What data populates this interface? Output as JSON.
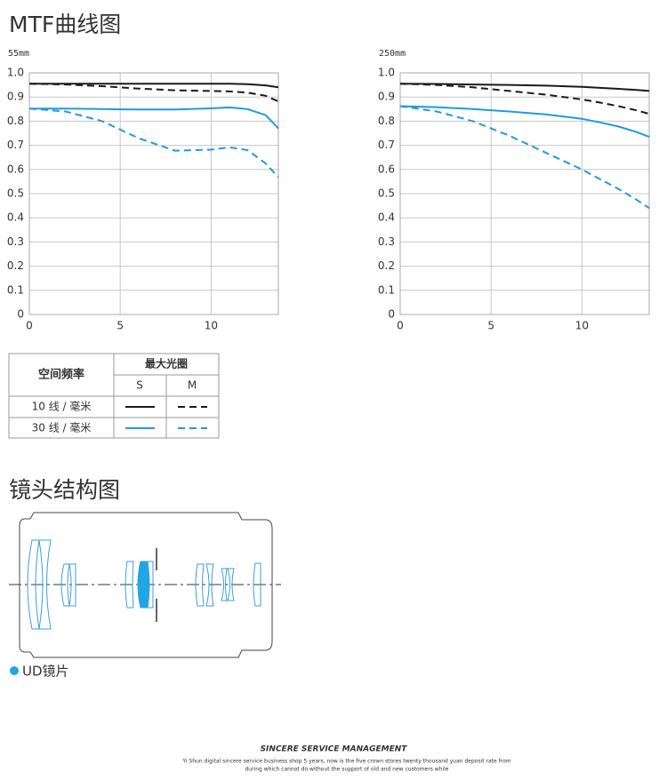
{
  "header": {
    "title": "MTF曲线图"
  },
  "chart_data": [
    {
      "type": "line",
      "subtitle": "55mm",
      "x": [
        0,
        2,
        4,
        6,
        8,
        10,
        11,
        12,
        13,
        13.7
      ],
      "series": [
        {
          "color": "#1a1a1a",
          "dashed": false,
          "values": [
            0.955,
            0.955,
            0.955,
            0.955,
            0.955,
            0.955,
            0.955,
            0.953,
            0.948,
            0.94
          ]
        },
        {
          "color": "#1a1a1a",
          "dashed": true,
          "values": [
            0.955,
            0.952,
            0.945,
            0.935,
            0.928,
            0.925,
            0.923,
            0.918,
            0.905,
            0.882
          ]
        },
        {
          "color": "#1e9be0",
          "dashed": false,
          "values": [
            0.852,
            0.852,
            0.85,
            0.848,
            0.848,
            0.853,
            0.857,
            0.85,
            0.825,
            0.77
          ]
        },
        {
          "color": "#1e9be0",
          "dashed": true,
          "values": [
            0.852,
            0.84,
            0.8,
            0.73,
            0.678,
            0.682,
            0.692,
            0.68,
            0.625,
            0.568
          ]
        }
      ],
      "xlim": [
        0,
        13.7
      ],
      "ylim": [
        0,
        1
      ],
      "xticks": [
        0,
        5,
        10
      ],
      "yticks": [
        0,
        0.1,
        0.2,
        0.3,
        0.4,
        0.5,
        0.6,
        0.7,
        0.8,
        0.9,
        {
          "value": 1,
          "label": "1.0"
        }
      ],
      "grid": true
    },
    {
      "type": "line",
      "subtitle": "250mm",
      "x": [
        0,
        2,
        4,
        6,
        8,
        10,
        11,
        12,
        13,
        13.7
      ],
      "series": [
        {
          "color": "#1a1a1a",
          "dashed": false,
          "values": [
            0.955,
            0.954,
            0.952,
            0.95,
            0.947,
            0.942,
            0.938,
            0.934,
            0.929,
            0.925
          ]
        },
        {
          "color": "#1a1a1a",
          "dashed": true,
          "values": [
            0.955,
            0.95,
            0.94,
            0.925,
            0.91,
            0.89,
            0.877,
            0.862,
            0.845,
            0.83
          ]
        },
        {
          "color": "#1e9be0",
          "dashed": false,
          "values": [
            0.862,
            0.858,
            0.85,
            0.84,
            0.828,
            0.81,
            0.795,
            0.778,
            0.755,
            0.735
          ]
        },
        {
          "color": "#1e9be0",
          "dashed": true,
          "values": [
            0.862,
            0.84,
            0.8,
            0.74,
            0.67,
            0.6,
            0.56,
            0.52,
            0.475,
            0.44
          ]
        }
      ],
      "xlim": [
        0,
        13.7
      ],
      "ylim": [
        0,
        1
      ],
      "xticks": [
        0,
        5,
        10
      ],
      "yticks": [
        0,
        0.1,
        0.2,
        0.3,
        0.4,
        0.5,
        0.6,
        0.7,
        0.8,
        0.9,
        {
          "value": 1,
          "label": "1.0"
        }
      ],
      "grid": true
    }
  ],
  "legend_table": {
    "row_header": "空间频率",
    "col_group": "最大光圈",
    "cols": [
      "S",
      "M"
    ],
    "rows": [
      "10 线 / 毫米",
      "30 线 / 毫米"
    ]
  },
  "lens": {
    "title": "镜头结构图",
    "legend": "UD镜片"
  },
  "footer": {
    "title": "SINCERE SERVICE MANAGEMENT",
    "lines": [
      "Yi Shun digital sincere service business shop 5 years, now is the five crown stores twenty thousand yuan deposit rate from",
      "during which cannot do without the support of old and new customers while"
    ]
  }
}
